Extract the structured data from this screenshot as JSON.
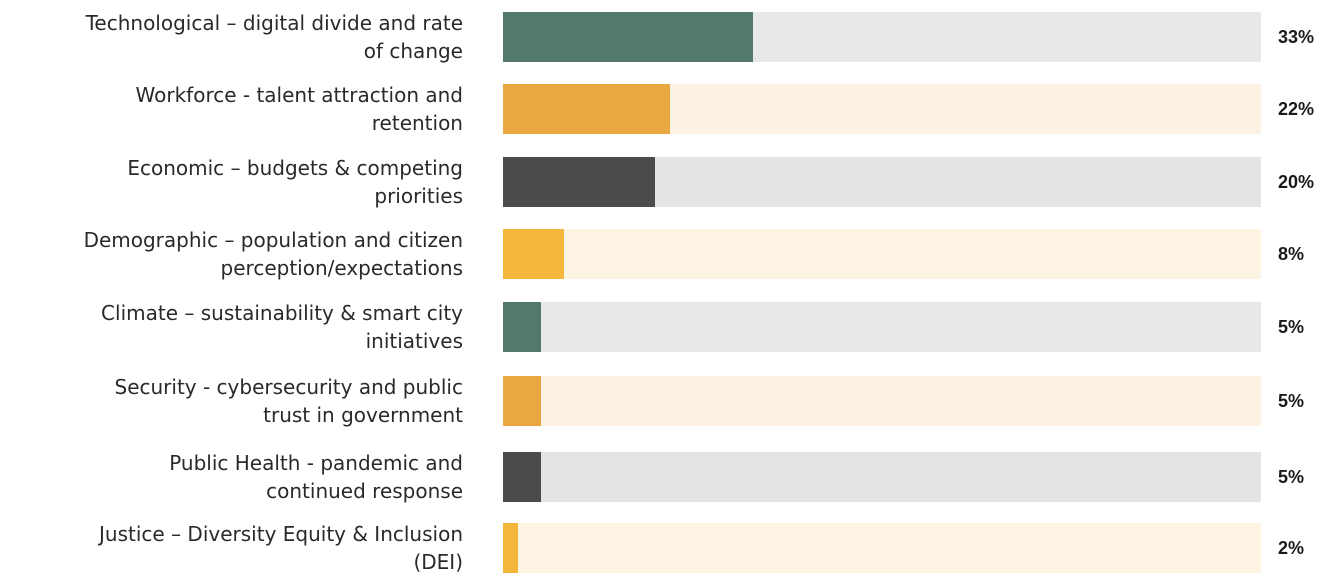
{
  "chart_data": {
    "type": "bar",
    "orientation": "horizontal",
    "categories": [
      "Technological – digital divide and rate\nof change",
      "Workforce - talent attraction and\nretention",
      "Economic – budgets & competing\npriorities",
      "Demographic – population and citizen\nperception/expectations",
      "Climate – sustainability & smart city\ninitiatives",
      "Security - cybersecurity and public\ntrust in government",
      "Public Health - pandemic and\ncontinued response",
      "Justice – Diversity Equity & Inclusion\n(DEI)"
    ],
    "values": [
      33,
      22,
      20,
      8,
      5,
      5,
      5,
      2
    ],
    "value_labels": [
      "33%",
      "22%",
      "20%",
      "8%",
      "5%",
      "5%",
      "5%",
      "2%"
    ],
    "xlim": [
      0,
      100
    ],
    "unit": "%",
    "grid": false,
    "legend": "none",
    "colors": [
      {
        "fill": "#527a6c",
        "track": "#e6e9e7"
      },
      {
        "fill": "#eaa843",
        "track": "#fcf1e3"
      },
      {
        "fill": "#4b4b4d",
        "track": "#e4e4e4"
      },
      {
        "fill": "#f5b73b",
        "track": "#fdf3e3"
      },
      {
        "fill": "#527a6c",
        "track": "#e6e9e7"
      },
      {
        "fill": "#eaa843",
        "track": "#fcf1e3"
      },
      {
        "fill": "#4b4b4d",
        "track": "#e4e4e4"
      },
      {
        "fill": "#f5b73b",
        "track": "#fdf3e3"
      }
    ]
  }
}
